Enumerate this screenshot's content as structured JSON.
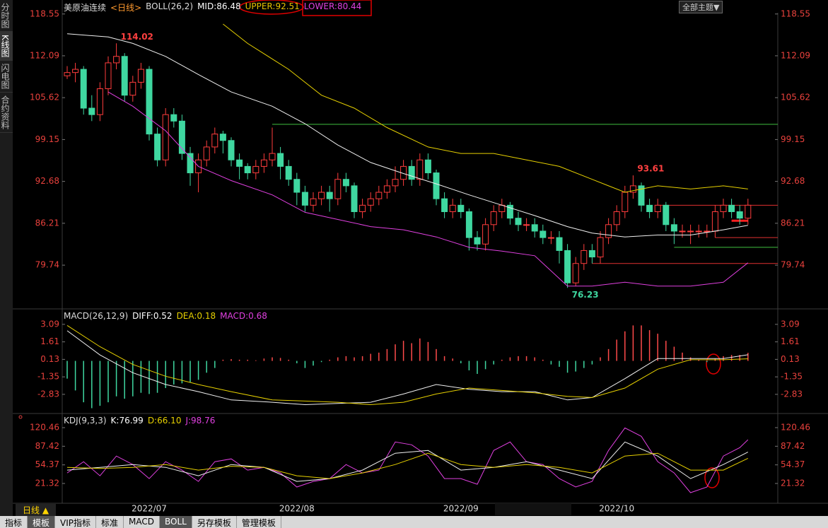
{
  "ui": {
    "sidebar": [
      "分时图",
      "K线图",
      "闪电图",
      "合约资料"
    ],
    "theme": "全部主题▼",
    "period": "日线 ▲",
    "tabs": [
      "指标",
      "模板",
      "VIP指标",
      "标准",
      "MACD",
      "BOLL",
      "另存模板",
      "管理模板"
    ]
  },
  "chart_data": [
    {
      "type": "candlestick",
      "header": [
        {
          "text": "美原油连续",
          "color": "#dddddd"
        },
        {
          "text": "<日线>",
          "color": "#ff9a2e"
        },
        {
          "text": "BOLL(26,2)",
          "color": "#dddddd"
        },
        {
          "text": "MID:86.48",
          "color": "#ffffff"
        },
        {
          "text": "UPPER:92.51",
          "color": "#e6c200"
        },
        {
          "text": "LOWER:80.44",
          "color": "#e040e0"
        }
      ],
      "categories": [
        null,
        null,
        null,
        null,
        null,
        null,
        null,
        null,
        null,
        null,
        "2022/07",
        null,
        null,
        null,
        null,
        null,
        null,
        null,
        null,
        null,
        null,
        null,
        null,
        null,
        null,
        null,
        null,
        null,
        "2022/08",
        null,
        null,
        null,
        null,
        null,
        null,
        null,
        null,
        null,
        null,
        null,
        null,
        null,
        null,
        null,
        null,
        null,
        null,
        null,
        "2022/09",
        null,
        null,
        null,
        null,
        null,
        null,
        null,
        null,
        null,
        null,
        null,
        null,
        null,
        null,
        null,
        null,
        null,
        null,
        "2022/10",
        null,
        null,
        null,
        null,
        null,
        null,
        null,
        null,
        null,
        null,
        null,
        null,
        null,
        null,
        null,
        null
      ],
      "ohlc": [
        [
          109,
          110.5,
          108.5,
          109.5
        ],
        [
          109.5,
          111,
          108,
          110
        ],
        [
          110,
          110.5,
          103,
          104
        ],
        [
          104,
          106,
          102,
          103
        ],
        [
          103,
          108,
          102,
          107
        ],
        [
          107,
          112,
          106,
          111
        ],
        [
          111,
          114.02,
          110,
          112
        ],
        [
          112,
          112.5,
          105,
          106
        ],
        [
          106,
          109,
          105,
          108
        ],
        [
          108,
          111,
          107,
          110
        ],
        [
          110,
          110.5,
          99,
          100
        ],
        [
          100,
          101,
          95,
          96
        ],
        [
          96,
          104,
          95,
          103
        ],
        [
          103,
          104,
          101,
          102
        ],
        [
          102,
          103,
          96,
          97
        ],
        [
          97,
          98,
          92,
          94
        ],
        [
          94,
          97,
          91,
          96
        ],
        [
          96,
          99,
          95,
          98
        ],
        [
          98,
          101,
          97,
          100
        ],
        [
          100,
          100.5,
          97,
          99
        ],
        [
          99,
          99.5,
          95,
          96
        ],
        [
          96,
          97,
          93,
          95
        ],
        [
          95,
          95.5,
          93,
          94
        ],
        [
          94,
          96,
          93,
          95
        ],
        [
          95,
          97,
          94,
          96
        ],
        [
          96,
          101,
          95,
          97
        ],
        [
          97,
          98,
          93,
          95
        ],
        [
          95,
          96,
          92,
          93
        ],
        [
          93,
          94,
          89,
          91
        ],
        [
          91,
          92,
          88,
          89
        ],
        [
          89,
          91,
          88,
          90
        ],
        [
          90,
          92,
          89,
          91
        ],
        [
          91,
          92,
          88,
          90
        ],
        [
          90,
          94,
          89,
          93
        ],
        [
          93,
          94,
          91,
          92
        ],
        [
          92,
          92.5,
          87,
          88
        ],
        [
          88,
          90,
          87,
          89
        ],
        [
          89,
          91,
          88,
          90
        ],
        [
          90,
          92,
          89,
          91
        ],
        [
          91,
          93,
          90,
          92
        ],
        [
          92,
          95,
          91,
          93
        ],
        [
          93,
          96,
          92,
          95
        ],
        [
          95,
          96,
          92,
          93
        ],
        [
          93,
          97,
          92,
          96
        ],
        [
          96,
          97,
          93,
          94
        ],
        [
          94,
          94.5,
          89,
          90
        ],
        [
          90,
          91,
          87,
          88
        ],
        [
          88,
          90,
          87,
          89
        ],
        [
          89,
          90,
          87,
          88
        ],
        [
          88,
          88.5,
          82,
          84
        ],
        [
          84,
          85,
          82,
          83
        ],
        [
          83,
          87,
          82,
          86
        ],
        [
          86,
          89,
          85,
          88
        ],
        [
          88,
          90,
          87,
          89
        ],
        [
          89,
          89.5,
          86,
          87
        ],
        [
          87,
          88,
          85,
          86
        ],
        [
          86,
          87,
          85,
          86
        ],
        [
          86,
          87,
          84,
          85
        ],
        [
          85,
          86,
          83,
          84
        ],
        [
          84,
          85,
          83,
          84
        ],
        [
          84,
          85,
          80,
          82
        ],
        [
          82,
          83,
          76.23,
          77
        ],
        [
          77,
          81,
          76.5,
          80
        ],
        [
          80,
          83,
          79,
          82
        ],
        [
          82,
          83,
          80,
          81
        ],
        [
          81,
          85,
          80,
          84
        ],
        [
          84,
          87,
          83,
          86
        ],
        [
          86,
          89,
          85,
          88
        ],
        [
          88,
          92,
          87,
          91
        ],
        [
          91,
          93.61,
          90,
          92
        ],
        [
          92,
          92.5,
          88,
          89
        ],
        [
          89,
          90,
          87,
          88
        ],
        [
          88,
          90,
          87,
          89
        ],
        [
          89,
          89.5,
          85,
          86
        ],
        [
          86,
          87,
          83,
          85
        ],
        [
          85,
          86,
          84,
          85
        ],
        [
          85,
          86,
          83,
          85
        ],
        [
          85,
          86,
          84,
          85
        ],
        [
          85,
          86,
          84,
          85
        ],
        [
          85,
          89,
          84,
          88
        ],
        [
          88,
          90,
          87,
          89
        ],
        [
          89,
          90,
          87,
          88
        ],
        [
          88,
          89,
          86,
          87
        ],
        [
          87,
          90,
          86,
          89
        ]
      ],
      "up_color": "#ff3d3d",
      "down_color": "#3fd7a0",
      "series": [
        {
          "color": "#e6d000",
          "x": [
            19,
            22,
            27,
            31,
            35,
            39,
            44,
            48,
            52,
            56,
            60,
            64,
            66,
            68,
            72,
            76,
            80,
            83
          ],
          "values": [
            117,
            114,
            110,
            106,
            104,
            101,
            98,
            97,
            97,
            96,
            95,
            93,
            92,
            91,
            92,
            91.5,
            92,
            91.5
          ]
        },
        {
          "color": "#f0f0f0",
          "x": [
            0,
            5,
            8,
            12,
            16,
            20,
            25,
            29,
            33,
            37,
            41,
            45,
            49,
            53,
            57,
            61,
            64,
            68,
            72,
            76,
            80,
            83
          ],
          "values": [
            115.5,
            115,
            114,
            112,
            109.2,
            106.5,
            104.3,
            101.6,
            98.3,
            95.6,
            93.9,
            92.3,
            90.6,
            89,
            87.4,
            85.7,
            84.7,
            84.1,
            84.4,
            84.4,
            85.2,
            85.9
          ]
        },
        {
          "color": "#e040e0",
          "x": [
            5,
            8,
            12,
            16,
            20,
            25,
            29,
            33,
            37,
            41,
            45,
            49,
            53,
            57,
            61,
            64,
            68,
            72,
            76,
            80,
            83
          ],
          "values": [
            106.5,
            104.3,
            100.5,
            95,
            92.8,
            90.6,
            87.9,
            86.8,
            85.7,
            85.2,
            84.1,
            82.5,
            81.9,
            81.2,
            76.5,
            76.5,
            77.1,
            76.5,
            76.5,
            77.1,
            80.1
          ]
        }
      ],
      "levels": [
        {
          "value": 101.5,
          "from": 25,
          "color": "#3fbf3f"
        },
        {
          "value": 89,
          "from": 72,
          "color": "#e03030"
        },
        {
          "value": 84,
          "from": 79,
          "color": "#e03030"
        },
        {
          "value": 82.5,
          "from": 74,
          "color": "#3fbf3f"
        },
        {
          "value": 80,
          "from": 64,
          "color": "#e03030"
        },
        {
          "value": 86.6,
          "from": 81,
          "to": 83,
          "color": "#ff2020",
          "width": 3
        }
      ],
      "annotations": [
        {
          "x": 6,
          "value": 114.02,
          "color": "#ff4040"
        },
        {
          "x": 69,
          "value": 93.61,
          "color": "#ff4040"
        },
        {
          "x": 61,
          "value": 76.23,
          "color": "#3fd7a0"
        }
      ],
      "ylim": [
        73.2,
        119.4
      ],
      "yticks": [
        118.55,
        112.09,
        105.62,
        99.15,
        92.68,
        86.21,
        79.74
      ],
      "tick_color": "#e8413c"
    },
    {
      "type": "macd",
      "header": [
        {
          "text": "MACD(26,12,9)",
          "color": "#dddddd"
        },
        {
          "text": "DIFF:0.52",
          "color": "#ffffff"
        },
        {
          "text": "DEA:0.18",
          "color": "#e6d000"
        },
        {
          "text": "MACD:0.68",
          "color": "#e040e0"
        }
      ],
      "values": [
        -1.5,
        -2.5,
        -3.5,
        -4.0,
        -3.8,
        -3.5,
        -3.0,
        -3.2,
        -3.0,
        -2.7,
        -2.8,
        -2.7,
        -2.3,
        -2.0,
        -1.9,
        -1.8,
        -1.6,
        -1.0,
        -0.6,
        0.1,
        0.15,
        0.1,
        0.1,
        0.05,
        0.2,
        0.3,
        0.25,
        0.1,
        -0.2,
        -0.6,
        -0.4,
        -0.1,
        0.1,
        0.3,
        0.4,
        0.3,
        0.4,
        0.6,
        0.7,
        1.0,
        1.4,
        1.7,
        1.5,
        1.9,
        1.6,
        1.0,
        0.4,
        0.2,
        -0.2,
        -0.8,
        -1.1,
        -0.7,
        -0.3,
        0.1,
        0.3,
        0.4,
        0.4,
        0.3,
        0.1,
        -0.3,
        -0.5,
        -1.0,
        -0.9,
        -0.6,
        -0.3,
        0.3,
        1.0,
        1.8,
        2.5,
        3.0,
        3.0,
        2.6,
        2.3,
        1.7,
        1.2,
        0.7,
        0.3,
        0.1,
        -0.1,
        0.2,
        0.4,
        0.5,
        0.5,
        0.68
      ],
      "pos_color": "#ff4a4a",
      "neg_color": "#3fd7a0",
      "series": [
        {
          "color": "#f0f0f0",
          "x": [
            0,
            4,
            8,
            12,
            16,
            20,
            25,
            29,
            33,
            37,
            41,
            45,
            49,
            53,
            57,
            61,
            64,
            68,
            72,
            76,
            80,
            83
          ],
          "values": [
            2.55,
            0.5,
            -1.0,
            -2.0,
            -2.6,
            -3.3,
            -3.5,
            -3.7,
            -3.6,
            -3.5,
            -2.8,
            -2.0,
            -2.4,
            -2.6,
            -2.6,
            -3.3,
            -3.1,
            -1.5,
            0.2,
            0.2,
            0.2,
            0.52
          ]
        },
        {
          "color": "#e6d000",
          "x": [
            0,
            4,
            8,
            12,
            16,
            20,
            25,
            29,
            33,
            37,
            41,
            45,
            49,
            53,
            57,
            61,
            64,
            68,
            72,
            76,
            80,
            83
          ],
          "values": [
            3.0,
            1.2,
            -0.3,
            -1.3,
            -2.0,
            -2.6,
            -3.3,
            -3.4,
            -3.5,
            -3.7,
            -3.5,
            -2.8,
            -2.3,
            -2.5,
            -2.7,
            -3.0,
            -3.1,
            -2.3,
            -0.7,
            0.1,
            0.1,
            0.18
          ]
        }
      ],
      "ylim": [
        -4.33,
        4.1
      ],
      "yticks": [
        3.09,
        1.61,
        0.13,
        -1.35,
        -2.83
      ],
      "tick_color": "#e8413c"
    },
    {
      "type": "lines",
      "header": [
        {
          "text": "KDJ(9,3,3)",
          "color": "#dddddd"
        },
        {
          "text": "K:76.99",
          "color": "#ffffff"
        },
        {
          "text": "D:66.10",
          "color": "#e6d000"
        },
        {
          "text": "J:98.76",
          "color": "#e040e0"
        }
      ],
      "series": [
        {
          "color": "#e040e0",
          "x": [
            0,
            2,
            4,
            6,
            8,
            10,
            12,
            14,
            16,
            18,
            20,
            22,
            24,
            26,
            28,
            30,
            32,
            34,
            36,
            38,
            40,
            42,
            44,
            46,
            48,
            50,
            52,
            54,
            56,
            58,
            60,
            62,
            64,
            66,
            68,
            70,
            72,
            74,
            76,
            78,
            80,
            82,
            83
          ],
          "values": [
            40,
            60,
            35,
            70,
            55,
            30,
            60,
            45,
            25,
            60,
            65,
            45,
            50,
            40,
            15,
            25,
            30,
            55,
            40,
            45,
            95,
            90,
            70,
            30,
            30,
            20,
            80,
            95,
            60,
            55,
            30,
            15,
            25,
            80,
            120,
            105,
            60,
            40,
            5,
            15,
            70,
            85,
            99
          ]
        },
        {
          "color": "#f0f0f0",
          "x": [
            0,
            4,
            8,
            12,
            16,
            20,
            24,
            28,
            32,
            36,
            40,
            44,
            48,
            52,
            56,
            60,
            64,
            68,
            72,
            76,
            80,
            83
          ],
          "values": [
            45,
            50,
            55,
            50,
            35,
            55,
            50,
            25,
            30,
            45,
            75,
            80,
            45,
            50,
            60,
            45,
            30,
            95,
            70,
            30,
            55,
            77
          ]
        },
        {
          "color": "#e6d000",
          "x": [
            0,
            4,
            8,
            12,
            16,
            20,
            24,
            28,
            32,
            36,
            40,
            44,
            48,
            52,
            56,
            60,
            64,
            68,
            72,
            76,
            80,
            83
          ],
          "values": [
            50,
            48,
            50,
            55,
            45,
            52,
            50,
            35,
            30,
            40,
            55,
            75,
            55,
            50,
            55,
            50,
            40,
            70,
            75,
            45,
            45,
            66
          ]
        }
      ],
      "ylim": [
        -11.3,
        139.3
      ],
      "yticks": [
        120.46,
        87.42,
        54.37,
        21.32
      ],
      "tick_color": "#e8413c"
    }
  ]
}
